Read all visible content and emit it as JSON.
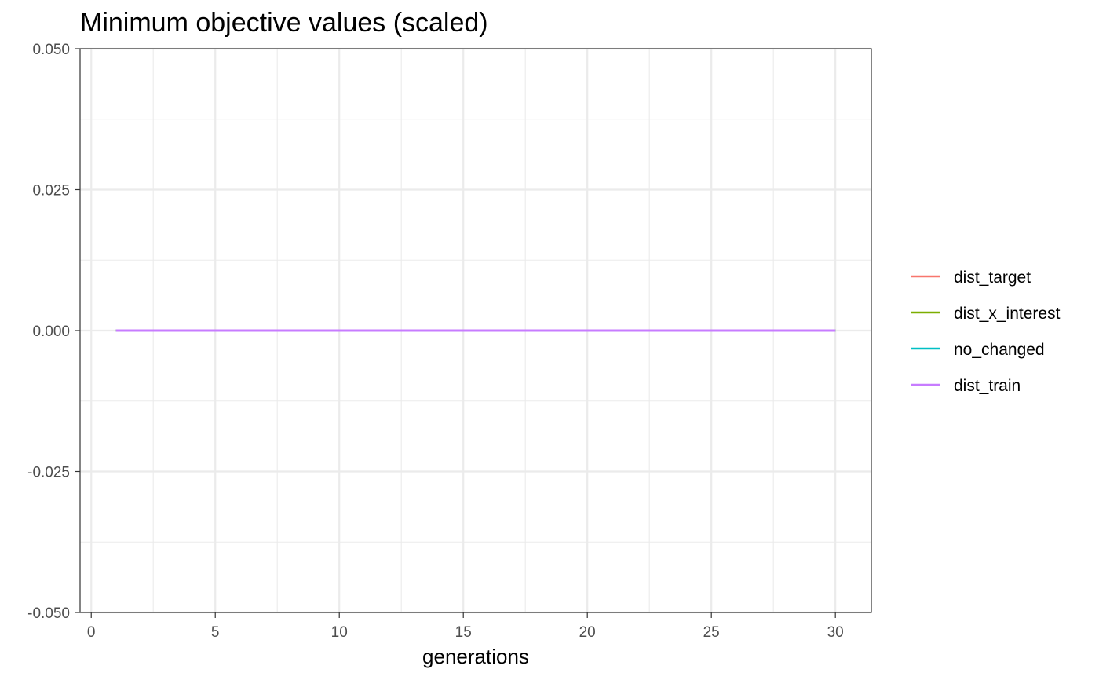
{
  "chart_data": {
    "type": "line",
    "title": "Minimum objective values (scaled)",
    "xlabel": "generations",
    "ylabel": "",
    "xlim": [
      -0.45,
      31.45
    ],
    "ylim": [
      -0.05,
      0.05
    ],
    "x_ticks": [
      0,
      5,
      10,
      15,
      20,
      25,
      30
    ],
    "x_tick_labels": [
      "0",
      "5",
      "10",
      "15",
      "20",
      "25",
      "30"
    ],
    "x_minor_gridlines": [
      2.5,
      7.5,
      12.5,
      17.5,
      22.5,
      27.5
    ],
    "y_ticks": [
      -0.05,
      -0.025,
      0.0,
      0.025,
      0.05
    ],
    "y_tick_labels": [
      "-0.050",
      "-0.025",
      "0.000",
      "0.025",
      "0.050"
    ],
    "y_minor_gridlines": [
      -0.0375,
      -0.0125,
      0.0125,
      0.0375
    ],
    "grid": true,
    "legend_position": "right",
    "x": [
      1,
      2,
      3,
      4,
      5,
      6,
      7,
      8,
      9,
      10,
      11,
      12,
      13,
      14,
      15,
      16,
      17,
      18,
      19,
      20,
      21,
      22,
      23,
      24,
      25,
      26,
      27,
      28,
      29,
      30
    ],
    "series": [
      {
        "name": "dist_target",
        "color": "#F8766D",
        "values": [
          0,
          0,
          0,
          0,
          0,
          0,
          0,
          0,
          0,
          0,
          0,
          0,
          0,
          0,
          0,
          0,
          0,
          0,
          0,
          0,
          0,
          0,
          0,
          0,
          0,
          0,
          0,
          0,
          0,
          0
        ]
      },
      {
        "name": "dist_x_interest",
        "color": "#7CAE00",
        "values": [
          0,
          0,
          0,
          0,
          0,
          0,
          0,
          0,
          0,
          0,
          0,
          0,
          0,
          0,
          0,
          0,
          0,
          0,
          0,
          0,
          0,
          0,
          0,
          0,
          0,
          0,
          0,
          0,
          0,
          0
        ]
      },
      {
        "name": "no_changed",
        "color": "#00BFC4",
        "values": [
          0,
          0,
          0,
          0,
          0,
          0,
          0,
          0,
          0,
          0,
          0,
          0,
          0,
          0,
          0,
          0,
          0,
          0,
          0,
          0,
          0,
          0,
          0,
          0,
          0,
          0,
          0,
          0,
          0,
          0
        ]
      },
      {
        "name": "dist_train",
        "color": "#C77CFF",
        "values": [
          0,
          0,
          0,
          0,
          0,
          0,
          0,
          0,
          0,
          0,
          0,
          0,
          0,
          0,
          0,
          0,
          0,
          0,
          0,
          0,
          0,
          0,
          0,
          0,
          0,
          0,
          0,
          0,
          0,
          0
        ]
      }
    ]
  }
}
